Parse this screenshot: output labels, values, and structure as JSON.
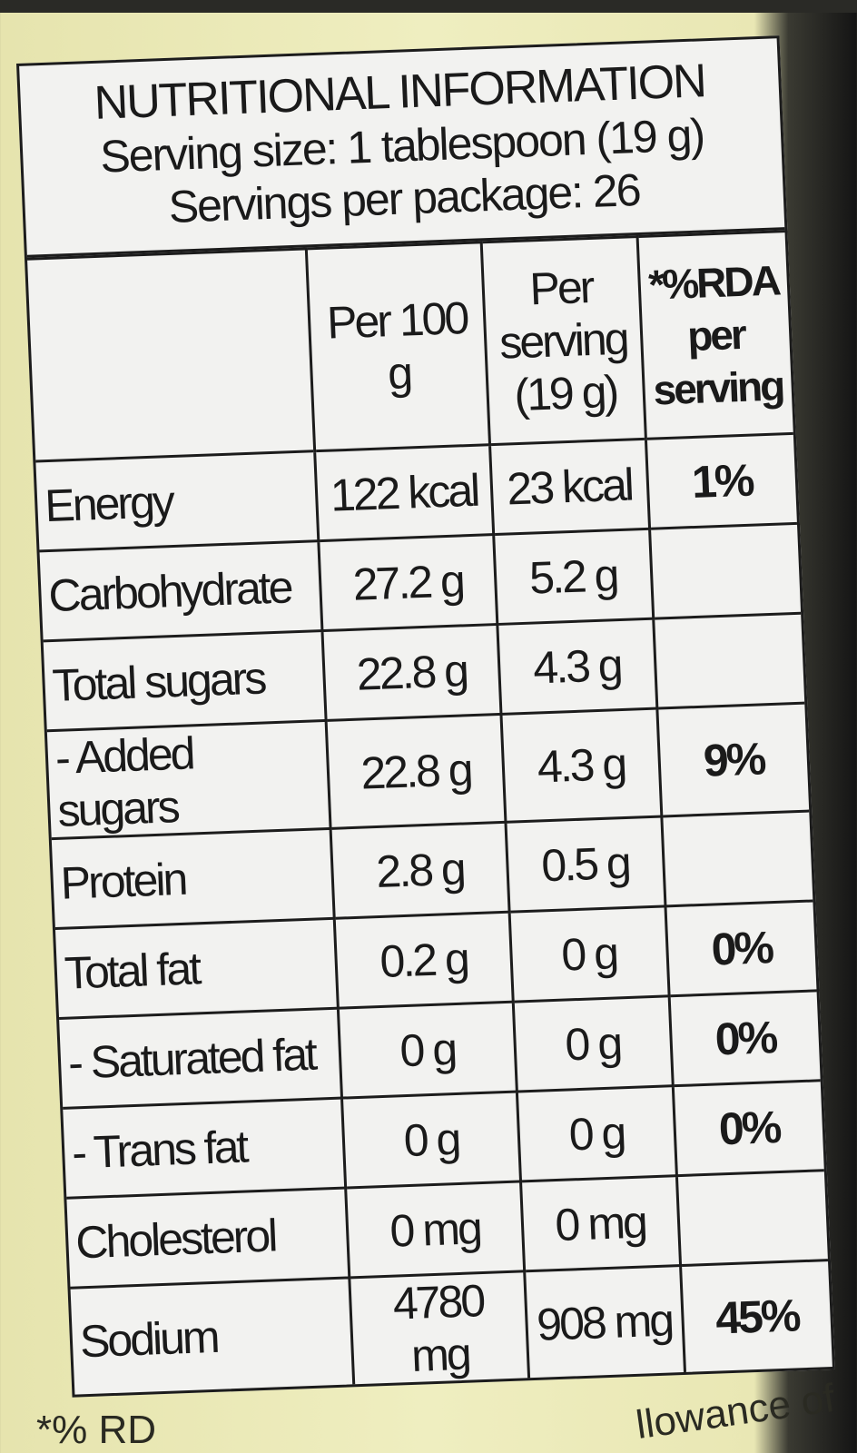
{
  "title": "NUTRITIONAL INFORMATION",
  "serving_size": "Serving size: 1 tablespoon (19 g)",
  "servings_per_package": "Servings per package: 26",
  "columns": {
    "per100": "Per 100 g",
    "per_serving": "Per serving (19 g)",
    "rda": "*%RDA per serving"
  },
  "rows": [
    {
      "name": "Energy",
      "per100": "122 kcal",
      "serving": "23 kcal",
      "rda": "1%"
    },
    {
      "name": "Carbohydrate",
      "per100": "27.2 g",
      "serving": "5.2 g",
      "rda": ""
    },
    {
      "name": "Total sugars",
      "per100": "22.8 g",
      "serving": "4.3 g",
      "rda": ""
    },
    {
      "name": "- Added sugars",
      "per100": "22.8 g",
      "serving": "4.3 g",
      "rda": "9%"
    },
    {
      "name": "Protein",
      "per100": "2.8 g",
      "serving": "0.5 g",
      "rda": ""
    },
    {
      "name": "Total fat",
      "per100": "0.2 g",
      "serving": "0 g",
      "rda": "0%"
    },
    {
      "name": "- Saturated fat",
      "per100": "0 g",
      "serving": "0 g",
      "rda": "0%"
    },
    {
      "name": "- Trans fat",
      "per100": "0 g",
      "serving": "0 g",
      "rda": "0%"
    },
    {
      "name": "Cholesterol",
      "per100": "0 mg",
      "serving": "0 mg",
      "rda": ""
    },
    {
      "name": "Sodium",
      "per100": "4780 mg",
      "serving": "908 mg",
      "rda": "45%"
    }
  ],
  "footer": {
    "left": "*% RD",
    "right": "llowance of"
  }
}
